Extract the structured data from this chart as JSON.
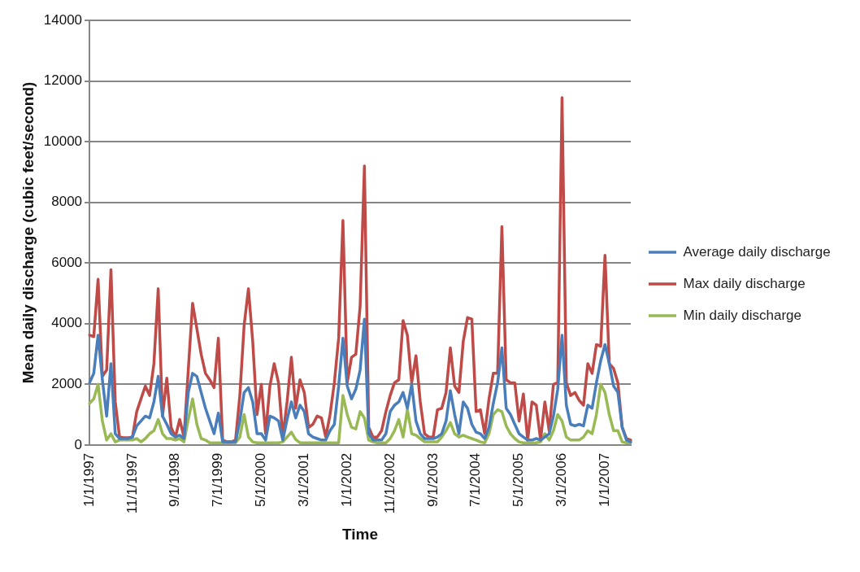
{
  "chart_data": {
    "type": "line",
    "xlabel": "Time",
    "ylabel": "Mean daily discharge (cubic feet/second)",
    "categories": [
      "1/1/1997",
      null,
      null,
      null,
      null,
      null,
      null,
      null,
      null,
      null,
      "11/1/1997",
      null,
      null,
      null,
      null,
      null,
      null,
      null,
      null,
      null,
      "9/1/1998",
      null,
      null,
      null,
      null,
      null,
      null,
      null,
      null,
      null,
      "7/1/1999",
      null,
      null,
      null,
      null,
      null,
      null,
      null,
      null,
      null,
      "5/1/2000",
      null,
      null,
      null,
      null,
      null,
      null,
      null,
      null,
      null,
      "3/1/2001",
      null,
      null,
      null,
      null,
      null,
      null,
      null,
      null,
      null,
      "1/1/2002",
      null,
      null,
      null,
      null,
      null,
      null,
      null,
      null,
      null,
      "11/1/2002",
      null,
      null,
      null,
      null,
      null,
      null,
      null,
      null,
      null,
      "9/1/2003",
      null,
      null,
      null,
      null,
      null,
      null,
      null,
      null,
      null,
      "7/1/2004",
      null,
      null,
      null,
      null,
      null,
      null,
      null,
      null,
      null,
      "5/1/2005",
      null,
      null,
      null,
      null,
      null,
      null,
      null,
      null,
      null,
      "3/1/2006",
      null,
      null,
      null,
      null,
      null,
      null,
      null,
      null,
      null,
      "1/1/2007",
      null,
      null,
      null,
      null,
      null,
      null
    ],
    "series": [
      {
        "name": "Average daily discharge",
        "color": "#4a7ebb",
        "values": [
          2050,
          2360,
          3620,
          2150,
          950,
          2680,
          370,
          210,
          210,
          210,
          260,
          630,
          790,
          950,
          890,
          1420,
          2260,
          950,
          680,
          370,
          260,
          320,
          210,
          1730,
          2360,
          2260,
          1730,
          1210,
          790,
          370,
          1050,
          100,
          100,
          100,
          100,
          790,
          1730,
          1890,
          1420,
          370,
          370,
          160,
          950,
          890,
          790,
          160,
          840,
          1420,
          890,
          1310,
          1100,
          370,
          260,
          210,
          160,
          160,
          470,
          680,
          1940,
          3520,
          1940,
          1520,
          1840,
          2470,
          4150,
          370,
          160,
          160,
          160,
          370,
          1100,
          1310,
          1420,
          1730,
          1210,
          2000,
          790,
          370,
          210,
          210,
          210,
          260,
          370,
          790,
          1790,
          1000,
          370,
          1420,
          1210,
          680,
          420,
          370,
          210,
          580,
          1370,
          2050,
          3200,
          1210,
          1000,
          680,
          370,
          260,
          160,
          160,
          210,
          160,
          260,
          370,
          950,
          1840,
          3620,
          1310,
          680,
          630,
          680,
          630,
          1310,
          1210,
          2050,
          2780,
          3310,
          2680,
          1940,
          1730,
          580,
          160,
          100
        ]
      },
      {
        "name": "Max daily discharge",
        "color": "#be4b48",
        "values": [
          3620,
          3570,
          5460,
          2260,
          2470,
          5780,
          1420,
          260,
          240,
          240,
          260,
          1100,
          1520,
          1940,
          1630,
          2680,
          5150,
          950,
          2200,
          580,
          260,
          840,
          260,
          2470,
          4670,
          3830,
          2990,
          2360,
          2150,
          1890,
          3520,
          160,
          100,
          100,
          160,
          1630,
          3940,
          5150,
          3410,
          1000,
          2000,
          370,
          1940,
          2680,
          2050,
          260,
          1420,
          2890,
          1210,
          2150,
          1730,
          580,
          680,
          950,
          890,
          260,
          1000,
          2050,
          3520,
          7400,
          2050,
          2890,
          2990,
          4570,
          9200,
          580,
          260,
          260,
          470,
          1100,
          1630,
          2050,
          2150,
          4100,
          3620,
          2050,
          2940,
          1420,
          370,
          260,
          260,
          1160,
          1210,
          1730,
          3200,
          1940,
          1730,
          3410,
          4200,
          4150,
          1100,
          1160,
          370,
          1520,
          2360,
          2360,
          7200,
          2150,
          2050,
          2050,
          790,
          1680,
          160,
          1420,
          1310,
          160,
          1420,
          470,
          2000,
          2050,
          11450,
          2050,
          1630,
          1730,
          1470,
          1310,
          2680,
          2360,
          3310,
          3250,
          6250,
          2680,
          2520,
          2050,
          580,
          210,
          160
        ]
      },
      {
        "name": "Min daily discharge",
        "color": "#98b954",
        "values": [
          1370,
          1520,
          2000,
          790,
          160,
          370,
          100,
          160,
          160,
          160,
          160,
          210,
          100,
          210,
          370,
          470,
          840,
          370,
          210,
          210,
          160,
          210,
          100,
          840,
          1520,
          680,
          210,
          160,
          70,
          70,
          70,
          70,
          70,
          70,
          70,
          260,
          1000,
          260,
          100,
          70,
          70,
          70,
          70,
          70,
          70,
          100,
          260,
          420,
          180,
          70,
          70,
          70,
          70,
          70,
          70,
          70,
          70,
          70,
          70,
          1630,
          1000,
          580,
          530,
          1100,
          890,
          160,
          100,
          70,
          70,
          70,
          210,
          470,
          840,
          260,
          1160,
          370,
          320,
          210,
          100,
          100,
          100,
          100,
          260,
          470,
          740,
          370,
          260,
          320,
          260,
          210,
          160,
          100,
          70,
          370,
          1000,
          1160,
          1100,
          630,
          370,
          210,
          100,
          70,
          70,
          70,
          70,
          100,
          370,
          160,
          470,
          1000,
          790,
          260,
          160,
          160,
          160,
          260,
          470,
          370,
          1000,
          2000,
          1730,
          1000,
          470,
          470,
          100,
          70,
          70
        ]
      }
    ],
    "ylim": [
      0,
      14000
    ],
    "yticks": [
      0,
      2000,
      4000,
      6000,
      8000,
      10000,
      12000,
      14000
    ],
    "grid": "y",
    "legend": "right"
  }
}
